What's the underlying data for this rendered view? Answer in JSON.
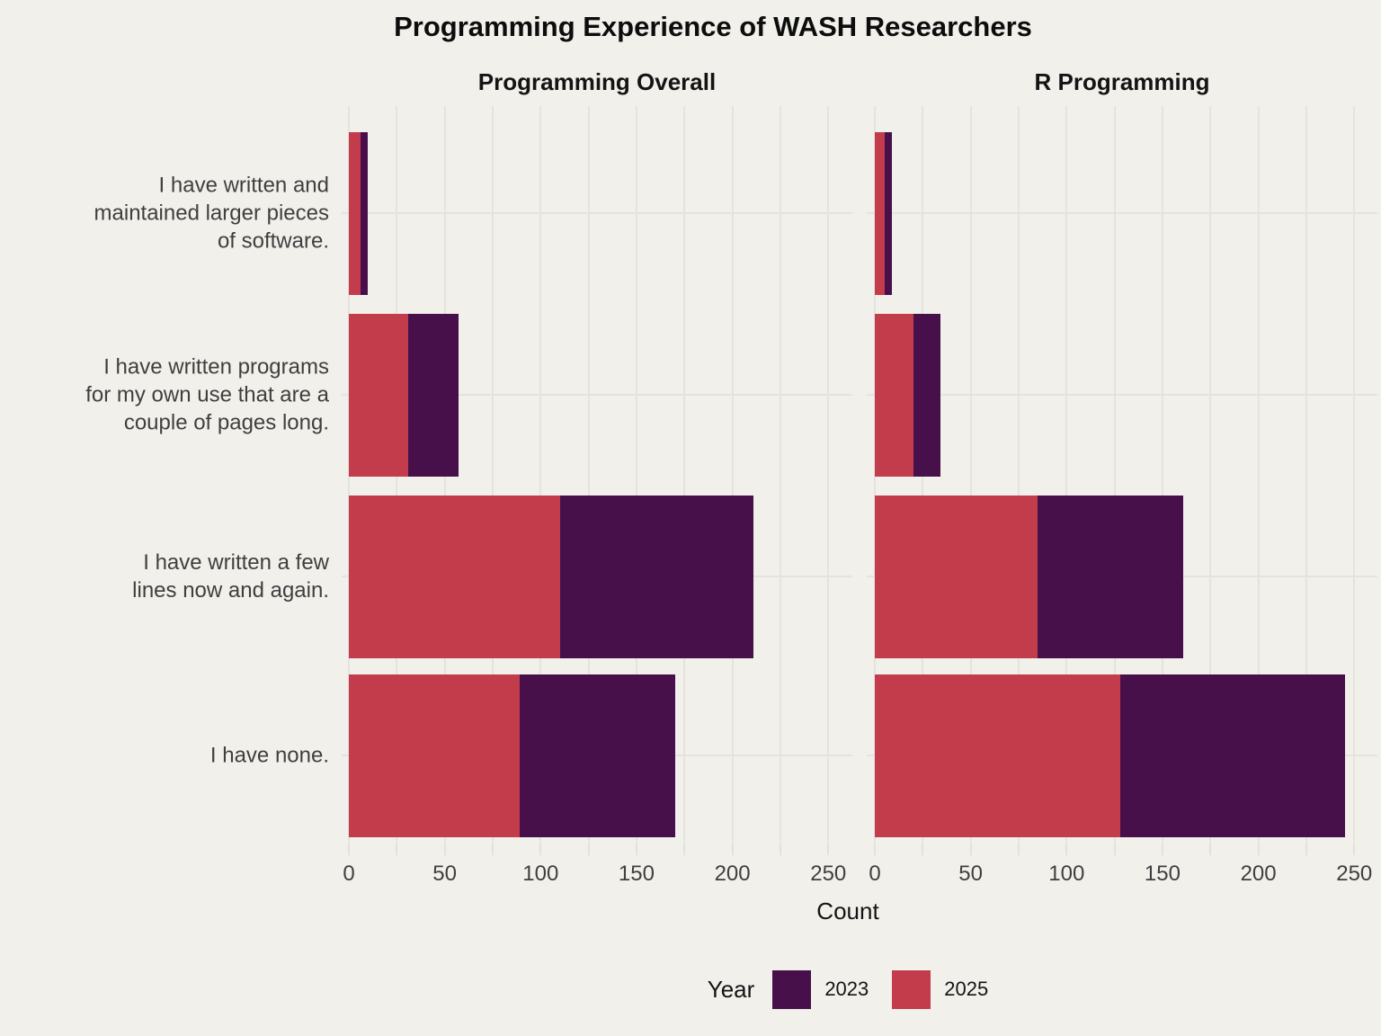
{
  "colors": {
    "background": "#F1F0EB",
    "gridline": "#E4E3DE",
    "bar_2023": "#48104B",
    "bar_2025": "#C23C4C",
    "label_text": "#3f3f3f",
    "title_text": "#0d0d0d"
  },
  "chart_data": {
    "type": "bar",
    "orientation": "horizontal",
    "stacked": true,
    "title": "Programming Experience of WASH Researchers",
    "xlabel": "Count",
    "x_ticks": [
      0,
      50,
      100,
      150,
      200,
      250
    ],
    "x_minor_step": 25,
    "xlim": [
      0,
      250
    ],
    "grid": true,
    "categories_top_to_bottom": [
      "I have written and\nmaintained larger pieces\nof software.",
      "I have written programs\nfor my own use that are a\ncouple of pages long.",
      "I have written a few\nlines now and again.",
      "I have none."
    ],
    "legend": {
      "title": "Year",
      "position": "bottom",
      "entries": [
        {
          "label": "2023",
          "color": "#48104B"
        },
        {
          "label": "2025",
          "color": "#C23C4C"
        }
      ]
    },
    "stack_order": [
      "2025",
      "2023"
    ],
    "panels": [
      {
        "title": "Programming Overall",
        "series": [
          {
            "name": "2025",
            "color": "#C23C4C",
            "values": [
              6,
              31,
              110,
              89
            ]
          },
          {
            "name": "2023",
            "color": "#48104B",
            "values": [
              4,
              26,
              101,
              81
            ]
          }
        ]
      },
      {
        "title": "R Programming",
        "series": [
          {
            "name": "2025",
            "color": "#C23C4C",
            "values": [
              5,
              20,
              85,
              128
            ]
          },
          {
            "name": "2023",
            "color": "#48104B",
            "values": [
              4,
              14,
              76,
              117
            ]
          }
        ]
      }
    ]
  }
}
